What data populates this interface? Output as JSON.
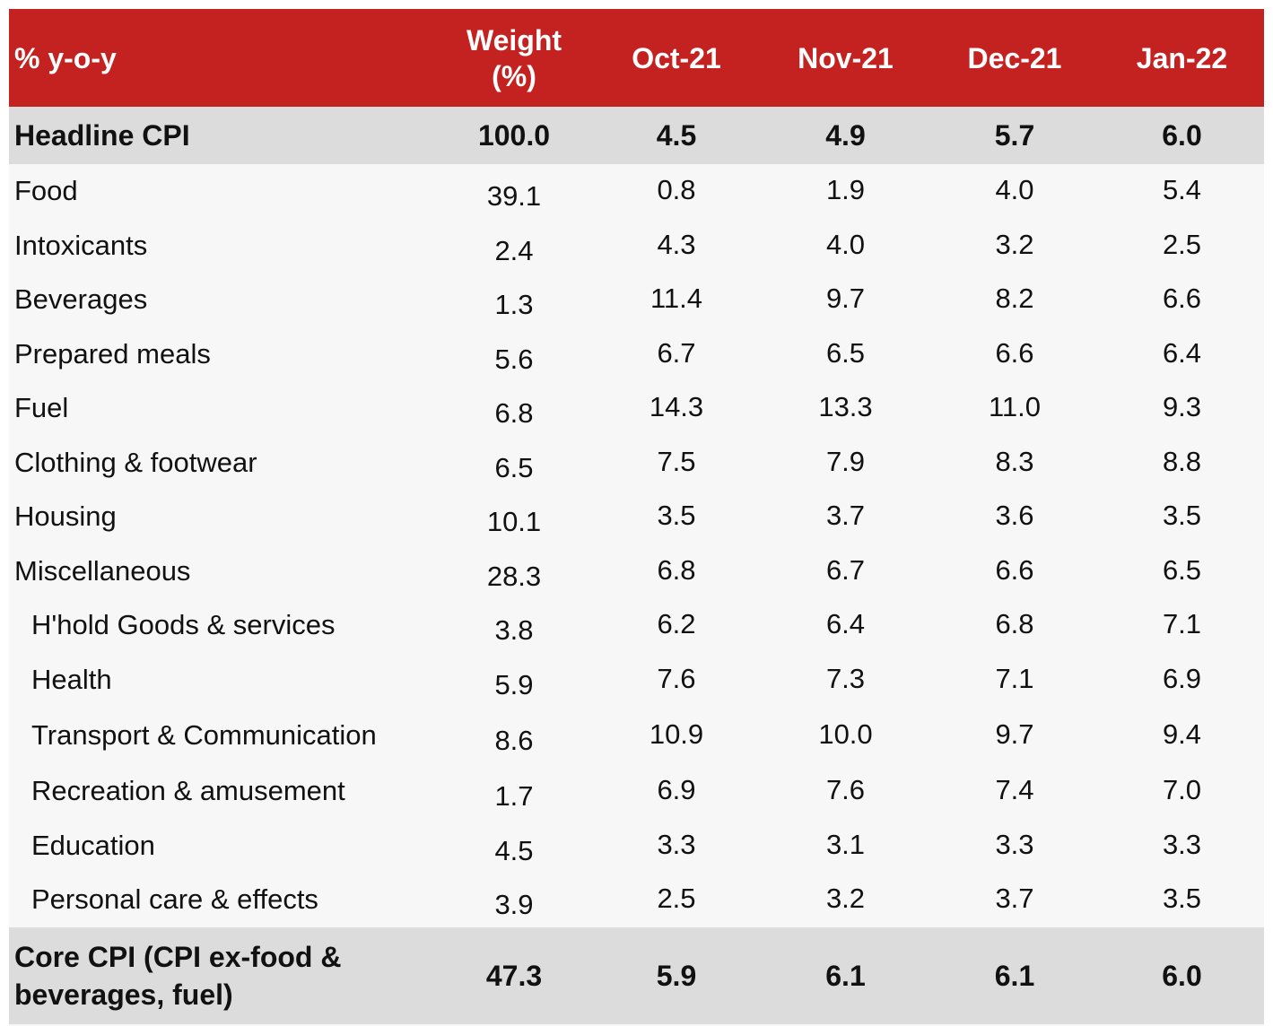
{
  "header": {
    "label": "% y-o-y",
    "weight_line1": "Weight",
    "weight_line2": "(%)",
    "months": [
      "Oct-21",
      "Nov-21",
      "Dec-21",
      "Jan-22"
    ]
  },
  "rows": [
    {
      "label": "Headline CPI",
      "weight": "100.0",
      "values": [
        "4.5",
        "4.9",
        "5.7",
        "6.0"
      ]
    },
    {
      "label": "Food",
      "weight": "39.1",
      "values": [
        "0.8",
        "1.9",
        "4.0",
        "5.4"
      ]
    },
    {
      "label": "Intoxicants",
      "weight": "2.4",
      "values": [
        "4.3",
        "4.0",
        "3.2",
        "2.5"
      ]
    },
    {
      "label": "Beverages",
      "weight": "1.3",
      "values": [
        "11.4",
        "9.7",
        "8.2",
        "6.6"
      ]
    },
    {
      "label": "Prepared meals",
      "weight": "5.6",
      "values": [
        "6.7",
        "6.5",
        "6.6",
        "6.4"
      ]
    },
    {
      "label": "Fuel",
      "weight": "6.8",
      "values": [
        "14.3",
        "13.3",
        "11.0",
        "9.3"
      ]
    },
    {
      "label": "Clothing & footwear",
      "weight": "6.5",
      "values": [
        "7.5",
        "7.9",
        "8.3",
        "8.8"
      ]
    },
    {
      "label": "Housing",
      "weight": "10.1",
      "values": [
        "3.5",
        "3.7",
        "3.6",
        "3.5"
      ]
    },
    {
      "label": "Miscellaneous",
      "weight": "28.3",
      "values": [
        "6.8",
        "6.7",
        "6.6",
        "6.5"
      ]
    },
    {
      "label": "H'hold Goods & services",
      "weight": "3.8",
      "values": [
        "6.2",
        "6.4",
        "6.8",
        "7.1"
      ]
    },
    {
      "label": "Health",
      "weight": "5.9",
      "values": [
        "7.6",
        "7.3",
        "7.1",
        "6.9"
      ]
    },
    {
      "label": "Transport & Communication",
      "weight": "8.6",
      "values": [
        "10.9",
        "10.0",
        "9.7",
        "9.4"
      ]
    },
    {
      "label": "Recreation & amusement",
      "weight": "1.7",
      "values": [
        "6.9",
        "7.6",
        "7.4",
        "7.0"
      ]
    },
    {
      "label": "Education",
      "weight": "4.5",
      "values": [
        "3.3",
        "3.1",
        "3.3",
        "3.3"
      ]
    },
    {
      "label": "Personal care & effects",
      "weight": "3.9",
      "values": [
        "2.5",
        "3.2",
        "3.7",
        "3.5"
      ]
    },
    {
      "label": "Core CPI (CPI ex-food & beverages, fuel)",
      "weight": "47.3",
      "values": [
        "5.9",
        "6.1",
        "6.1",
        "6.0"
      ]
    }
  ],
  "colors": {
    "header_bg": "#c42220",
    "header_text": "#ffffff",
    "highlight_row_bg": "#dcdcdc",
    "body_bg": "#f7f7f7"
  }
}
